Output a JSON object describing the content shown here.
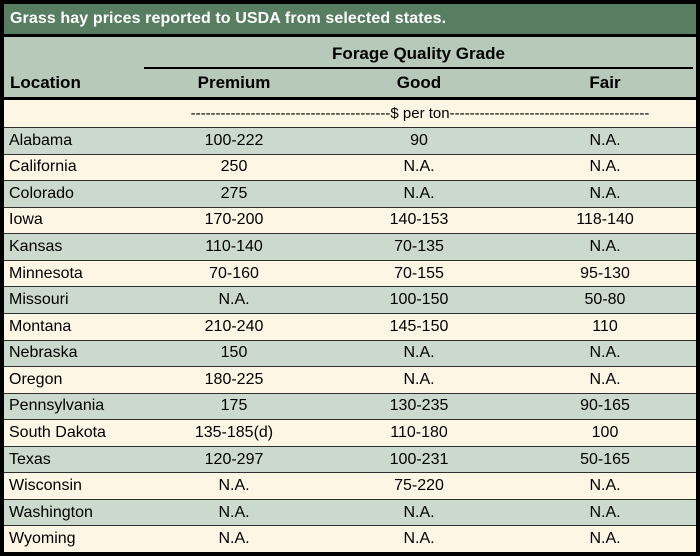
{
  "chart_data": {
    "type": "table",
    "title": "Grass hay prices reported to USDA from selected states.",
    "group_header": "Forage Quality Grade",
    "unit": "$ per ton",
    "unit_line": "----------------------------------------$ per ton----------------------------------------",
    "columns": [
      "Location",
      "Premium",
      "Good",
      "Fair"
    ],
    "rows": [
      {
        "location": "Alabama",
        "premium": "100-222",
        "good": "90",
        "fair": "N.A."
      },
      {
        "location": "California",
        "premium": "250",
        "good": "N.A.",
        "fair": "N.A."
      },
      {
        "location": "Colorado",
        "premium": "275",
        "good": "N.A.",
        "fair": "N.A."
      },
      {
        "location": "Iowa",
        "premium": "170-200",
        "good": "140-153",
        "fair": "118-140"
      },
      {
        "location": "Kansas",
        "premium": "110-140",
        "good": "70-135",
        "fair": "N.A."
      },
      {
        "location": "Minnesota",
        "premium": "70-160",
        "good": "70-155",
        "fair": "95-130"
      },
      {
        "location": "Missouri",
        "premium": "N.A.",
        "good": "100-150",
        "fair": "50-80"
      },
      {
        "location": "Montana",
        "premium": "210-240",
        "good": "145-150",
        "fair": "110"
      },
      {
        "location": "Nebraska",
        "premium": "150",
        "good": "N.A.",
        "fair": "N.A."
      },
      {
        "location": "Oregon",
        "premium": "180-225",
        "good": "N.A.",
        "fair": "N.A."
      },
      {
        "location": "Pennsylvania",
        "premium": "175",
        "good": "130-235",
        "fair": "90-165"
      },
      {
        "location": "South Dakota",
        "premium": "135-185(d)",
        "good": "110-180",
        "fair": "100"
      },
      {
        "location": "Texas",
        "premium": "120-297",
        "good": "100-231",
        "fair": "50-165"
      },
      {
        "location": "Wisconsin",
        "premium": "N.A.",
        "good": "75-220",
        "fair": "N.A."
      },
      {
        "location": "Washington",
        "premium": "N.A.",
        "good": "N.A.",
        "fair": "N.A."
      },
      {
        "location": "Wyoming",
        "premium": "N.A.",
        "good": "N.A.",
        "fair": "N.A."
      }
    ]
  },
  "colors": {
    "title_bg": "#577e61",
    "header_bg": "#b7cab9",
    "row_green": "#ccd9cd",
    "row_cream": "#fdf6e4",
    "border": "#000000"
  }
}
